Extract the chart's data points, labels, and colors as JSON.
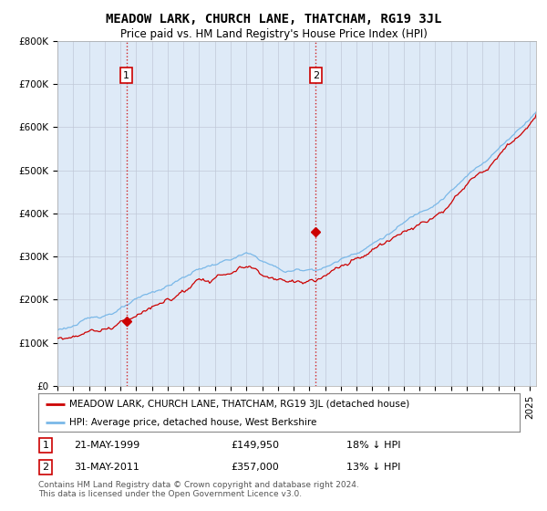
{
  "title": "MEADOW LARK, CHURCH LANE, THATCHAM, RG19 3JL",
  "subtitle": "Price paid vs. HM Land Registry's House Price Index (HPI)",
  "ylim": [
    0,
    800000
  ],
  "yticks": [
    0,
    100000,
    200000,
    300000,
    400000,
    500000,
    600000,
    700000,
    800000
  ],
  "ytick_labels": [
    "£0",
    "£100K",
    "£200K",
    "£300K",
    "£400K",
    "£500K",
    "£600K",
    "£700K",
    "£800K"
  ],
  "hpi_color": "#7ab8e8",
  "price_color": "#cc0000",
  "chart_bg": "#deeaf7",
  "sale1_year": 1999.38,
  "sale1_price": 149950,
  "sale2_year": 2011.41,
  "sale2_price": 357000,
  "legend_line1": "MEADOW LARK, CHURCH LANE, THATCHAM, RG19 3JL (detached house)",
  "legend_line2": "HPI: Average price, detached house, West Berkshire",
  "annotation1_label": "1",
  "annotation1_date": "21-MAY-1999",
  "annotation1_price": "£149,950",
  "annotation1_hpi": "18% ↓ HPI",
  "annotation2_label": "2",
  "annotation2_date": "31-MAY-2011",
  "annotation2_price": "£357,000",
  "annotation2_hpi": "13% ↓ HPI",
  "footer": "Contains HM Land Registry data © Crown copyright and database right 2024.\nThis data is licensed under the Open Government Licence v3.0.",
  "background_color": "#ffffff",
  "grid_color": "#c0c8d8",
  "title_fontsize": 10,
  "subtitle_fontsize": 8.5,
  "tick_fontsize": 7.5
}
